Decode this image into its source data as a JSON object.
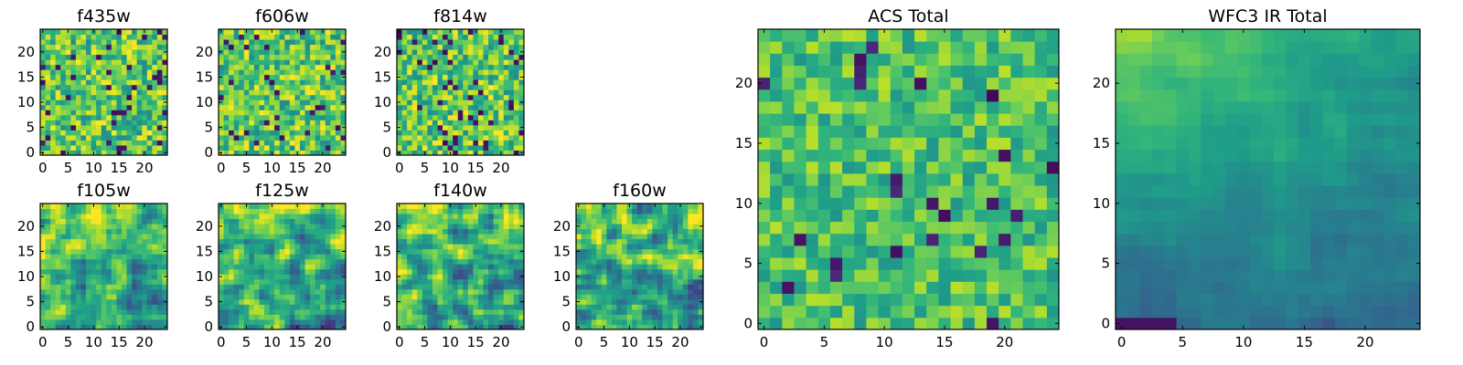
{
  "chart_data": [
    {
      "type": "heatmap",
      "title": "f435w",
      "grid_size": 25,
      "xlim": [
        0,
        24
      ],
      "ylim": [
        0,
        24
      ],
      "xticks": [
        0,
        5,
        10,
        15,
        20
      ],
      "yticks": [
        0,
        5,
        10,
        15,
        20
      ],
      "colormap": "viridis",
      "value_range": [
        0,
        1
      ],
      "pattern": "uniform-noise",
      "grid": false,
      "legend": "none",
      "xlabel": "",
      "ylabel": ""
    },
    {
      "type": "heatmap",
      "title": "f606w",
      "grid_size": 25,
      "xlim": [
        0,
        24
      ],
      "ylim": [
        0,
        24
      ],
      "xticks": [
        0,
        5,
        10,
        15,
        20
      ],
      "yticks": [
        0,
        5,
        10,
        15,
        20
      ],
      "colormap": "viridis",
      "value_range": [
        0,
        1
      ],
      "pattern": "uniform-noise",
      "grid": false,
      "legend": "none",
      "xlabel": "",
      "ylabel": ""
    },
    {
      "type": "heatmap",
      "title": "f814w",
      "grid_size": 25,
      "xlim": [
        0,
        24
      ],
      "ylim": [
        0,
        24
      ],
      "xticks": [
        0,
        5,
        10,
        15,
        20
      ],
      "yticks": [
        0,
        5,
        10,
        15,
        20
      ],
      "colormap": "viridis",
      "value_range": [
        0,
        1
      ],
      "pattern": "uniform-noise",
      "grid": false,
      "legend": "none",
      "xlabel": "",
      "ylabel": ""
    },
    {
      "type": "heatmap",
      "title": "f105w",
      "grid_size": 25,
      "xlim": [
        0,
        24
      ],
      "ylim": [
        0,
        24
      ],
      "xticks": [
        0,
        5,
        10,
        15,
        20
      ],
      "yticks": [
        0,
        5,
        10,
        15,
        20
      ],
      "colormap": "viridis",
      "value_range": [
        0,
        1
      ],
      "pattern": "smooth-noise, brighter toward upper-left",
      "grid": false,
      "legend": "none",
      "xlabel": "",
      "ylabel": ""
    },
    {
      "type": "heatmap",
      "title": "f125w",
      "grid_size": 25,
      "xlim": [
        0,
        24
      ],
      "ylim": [
        0,
        24
      ],
      "xticks": [
        0,
        5,
        10,
        15,
        20
      ],
      "yticks": [
        0,
        5,
        10,
        15,
        20
      ],
      "colormap": "viridis",
      "value_range": [
        0,
        1
      ],
      "pattern": "smooth-noise, brighter toward upper-left",
      "grid": false,
      "legend": "none",
      "xlabel": "",
      "ylabel": ""
    },
    {
      "type": "heatmap",
      "title": "f140w",
      "grid_size": 25,
      "xlim": [
        0,
        24
      ],
      "ylim": [
        0,
        24
      ],
      "xticks": [
        0,
        5,
        10,
        15,
        20
      ],
      "yticks": [
        0,
        5,
        10,
        15,
        20
      ],
      "colormap": "viridis",
      "value_range": [
        0,
        1
      ],
      "pattern": "smooth-noise, brighter toward upper-left",
      "grid": false,
      "legend": "none",
      "xlabel": "",
      "ylabel": ""
    },
    {
      "type": "heatmap",
      "title": "f160w",
      "grid_size": 25,
      "xlim": [
        0,
        24
      ],
      "ylim": [
        0,
        24
      ],
      "xticks": [
        0,
        5,
        10,
        15,
        20
      ],
      "yticks": [
        0,
        5,
        10,
        15,
        20
      ],
      "colormap": "viridis",
      "value_range": [
        0,
        1
      ],
      "pattern": "smooth-noise, brighter toward upper-left",
      "grid": false,
      "legend": "none",
      "xlabel": "",
      "ylabel": ""
    },
    {
      "type": "heatmap",
      "title": "ACS Total",
      "grid_size": 25,
      "xlim": [
        0,
        24
      ],
      "ylim": [
        0,
        24
      ],
      "xticks": [
        0,
        5,
        10,
        15,
        20
      ],
      "yticks": [
        0,
        5,
        10,
        15,
        20
      ],
      "colormap": "viridis",
      "value_range": [
        0,
        1
      ],
      "pattern": "noise with scattered dark pixels",
      "grid": false,
      "legend": "none",
      "xlabel": "",
      "ylabel": ""
    },
    {
      "type": "heatmap",
      "title": "WFC3 IR Total",
      "grid_size": 25,
      "xlim": [
        0,
        24
      ],
      "ylim": [
        0,
        24
      ],
      "xticks": [
        0,
        5,
        10,
        15,
        20
      ],
      "yticks": [
        0,
        5,
        10,
        15,
        20
      ],
      "colormap": "viridis",
      "value_range": [
        0,
        1
      ],
      "pattern": "smooth gradient, brightest at upper-left",
      "grid": false,
      "legend": "none",
      "xlabel": "",
      "ylabel": ""
    }
  ]
}
